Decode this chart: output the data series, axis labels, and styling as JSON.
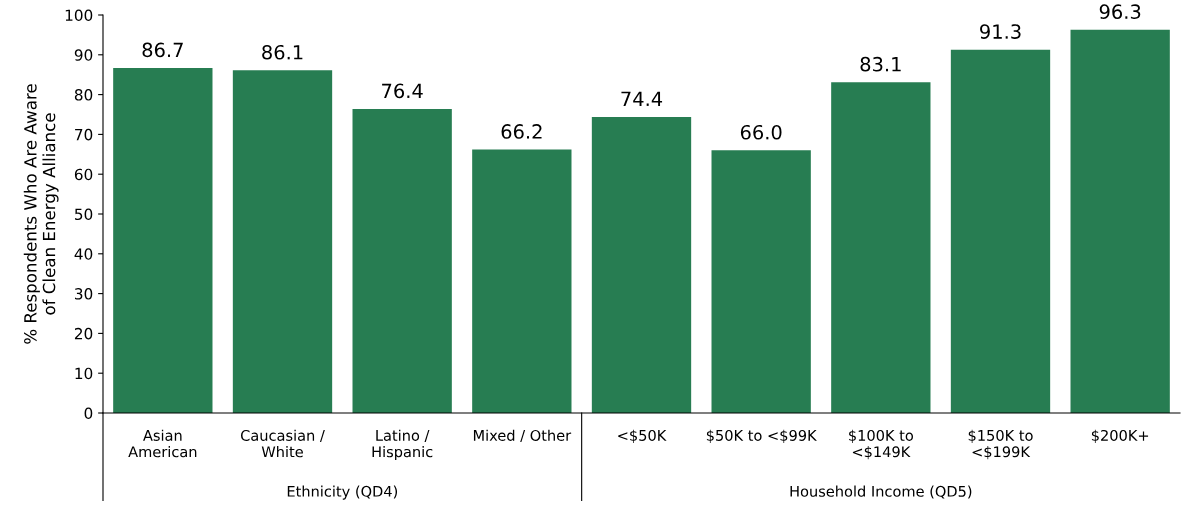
{
  "chart_data": {
    "type": "bar",
    "ylabel": "% Respondents Who Are Aware\nof Clean Energy Alliance",
    "categories": [
      "Asian\nAmerican",
      "Caucasian /\nWhite",
      "Latino /\nHispanic",
      "Mixed / Other",
      "<$50K",
      "$50K to <$99K",
      "$100K to\n<$149K",
      "$150K to\n<$199K",
      "$200K+"
    ],
    "values": [
      86.7,
      86.1,
      76.4,
      66.2,
      74.4,
      66.0,
      83.1,
      91.3,
      96.3
    ],
    "value_labels": [
      "86.7",
      "86.1",
      "76.4",
      "66.2",
      "74.4",
      "66.0",
      "83.1",
      "91.3",
      "96.3"
    ],
    "color": "#277d52",
    "ylim": [
      0,
      100
    ],
    "yticks": [
      0,
      10,
      20,
      30,
      40,
      50,
      60,
      70,
      80,
      90,
      100
    ],
    "grid": false,
    "annotations": [
      "Ethnicity (QD4)",
      "Household Income (QD5)"
    ]
  }
}
